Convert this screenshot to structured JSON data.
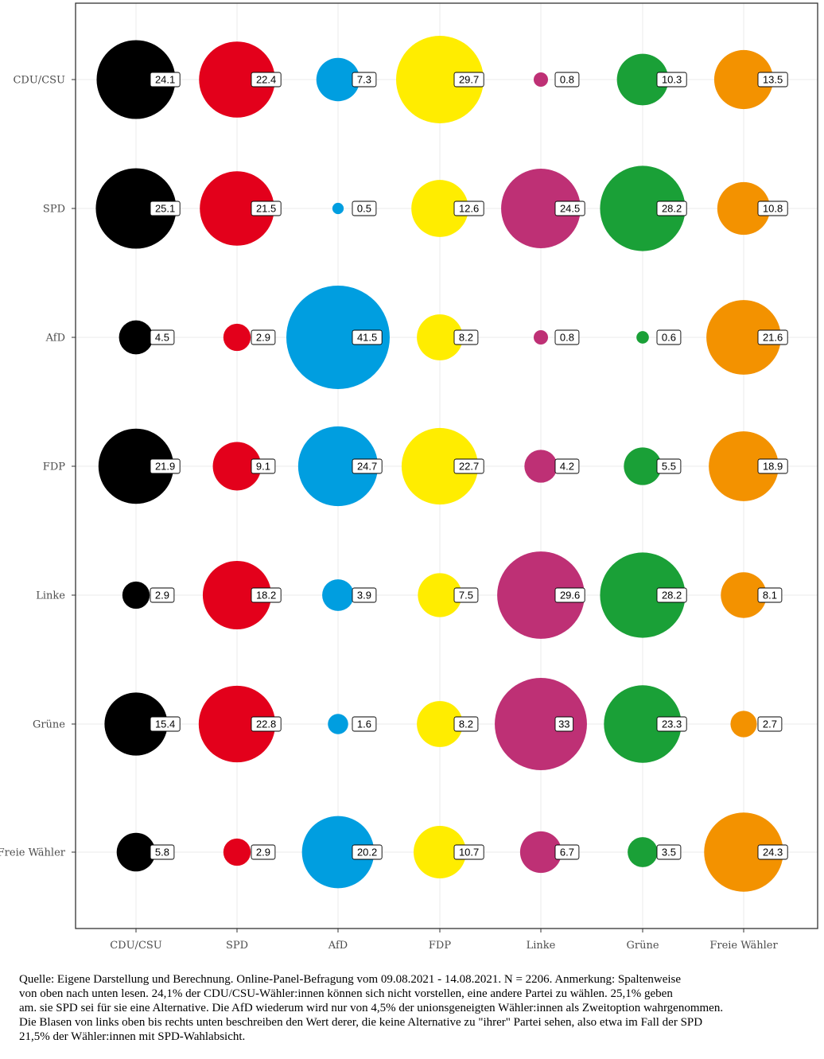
{
  "chart_data": {
    "type": "bubble",
    "x_categories": [
      "CDU/CSU",
      "SPD",
      "AfD",
      "FDP",
      "Linke",
      "Grüne",
      "Freie Wähler"
    ],
    "y_categories": [
      "CDU/CSU",
      "SPD",
      "AfD",
      "FDP",
      "Linke",
      "Grüne",
      "Freie Wähler"
    ],
    "values": [
      [
        24.1,
        22.4,
        7.3,
        29.7,
        0.8,
        10.3,
        13.5
      ],
      [
        25.1,
        21.5,
        0.5,
        12.6,
        24.5,
        28.2,
        10.8
      ],
      [
        4.5,
        2.9,
        41.5,
        8.2,
        0.8,
        0.6,
        21.6
      ],
      [
        21.9,
        9.1,
        24.7,
        22.7,
        4.2,
        5.5,
        18.9
      ],
      [
        2.9,
        18.2,
        3.9,
        7.5,
        29.6,
        28.2,
        8.1
      ],
      [
        15.4,
        22.8,
        1.6,
        8.2,
        33,
        23.3,
        2.7
      ],
      [
        5.8,
        2.9,
        20.2,
        10.7,
        6.7,
        3.5,
        24.3
      ]
    ],
    "value_labels": [
      [
        "24.1",
        "22.4",
        "7.3",
        "29.7",
        "0.8",
        "10.3",
        "13.5"
      ],
      [
        "25.1",
        "21.5",
        "0.5",
        "12.6",
        "24.5",
        "28.2",
        "10.8"
      ],
      [
        "4.5",
        "2.9",
        "41.5",
        "8.2",
        "0.8",
        "0.6",
        "21.6"
      ],
      [
        "21.9",
        "9.1",
        "24.7",
        "22.7",
        "4.2",
        "5.5",
        "18.9"
      ],
      [
        "2.9",
        "18.2",
        "3.9",
        "7.5",
        "29.6",
        "28.2",
        "8.1"
      ],
      [
        "15.4",
        "22.8",
        "1.6",
        "8.2",
        "33",
        "23.3",
        "2.7"
      ],
      [
        "5.8",
        "2.9",
        "20.2",
        "10.7",
        "6.7",
        "3.5",
        "24.3"
      ]
    ],
    "column_colors": [
      "#000000",
      "#e3001b",
      "#009ee0",
      "#ffed00",
      "#be3075",
      "#1aa037",
      "#f39200"
    ],
    "grid": true,
    "legend": "none"
  },
  "caption": {
    "lines": [
      "Quelle: Eigene Darstellung und Berechnung. Online-Panel-Befragung vom 09.08.2021 - 14.08.2021. N = 2206. Anmerkung: Spaltenweise",
      "von oben nach unten lesen. 24,1% der CDU/CSU-Wähler:innen können sich nicht vorstellen, eine andere Partei zu wählen. 25,1% geben",
      "am. sie SPD sei für sie eine Alternative. Die AfD wiederum wird nur von 4,5% der unionsgeneigten Wähler:innen als Zweitoption wahrgenommen.",
      "Die Blasen von links oben bis rechts unten beschreiben den Wert derer, die keine Alternative zu \"ihrer\" Partei sehen, also etwa im Fall der SPD",
      "21,5% der Wähler:innen mit SPD-Wahlabsicht."
    ]
  }
}
